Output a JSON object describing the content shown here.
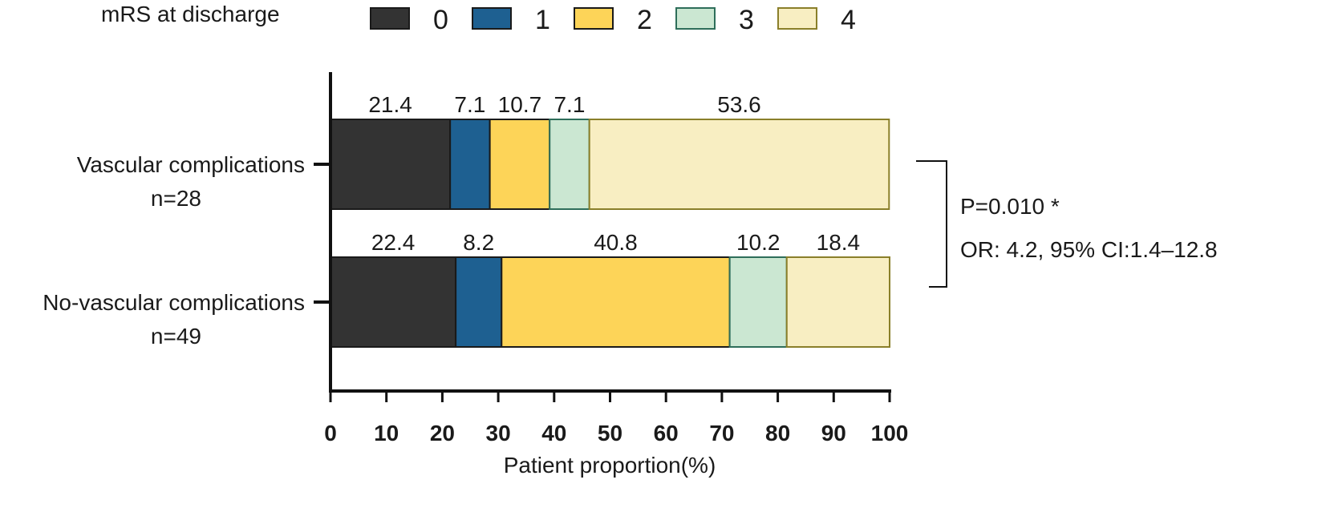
{
  "chart_data": {
    "type": "bar",
    "orientation": "horizontal",
    "stacked": true,
    "legend_title": "mRS at discharge",
    "legend_position": "top",
    "categories": [
      "Vascular complications",
      "No-vascular complications"
    ],
    "category_sublabels": [
      "n=28",
      "n=49"
    ],
    "series": [
      {
        "name": "0",
        "color": "#333333",
        "values": [
          21.4,
          22.4
        ]
      },
      {
        "name": "1",
        "color": "#1e6091",
        "values": [
          7.1,
          8.2
        ]
      },
      {
        "name": "2",
        "color": "#fdd458",
        "values": [
          10.7,
          40.8
        ]
      },
      {
        "name": "3",
        "color": "#cbe7d2",
        "values": [
          7.1,
          10.2
        ]
      },
      {
        "name": "4",
        "color": "#f8eec2",
        "values": [
          53.6,
          18.4
        ]
      }
    ],
    "series_borders": [
      "#1a1a1a",
      "#1a1a1a",
      "#1a1a1a",
      "#2e6e5a",
      "#8a7f2a"
    ],
    "data_labels": [
      [
        "21.4",
        "7.1",
        "10.7",
        "7.1",
        "53.6"
      ],
      [
        "22.4",
        "8.2",
        "40.8",
        "10.2",
        "18.4"
      ]
    ],
    "xlabel": "Patient proportion(%)",
    "ylabel": "",
    "xlim": [
      0,
      100
    ],
    "xticks": [
      "0",
      "10",
      "20",
      "30",
      "40",
      "50",
      "60",
      "70",
      "80",
      "90",
      "100"
    ],
    "grid": false,
    "annotation": {
      "lines": [
        "P=0.010 *",
        "OR: 4.2, 95% CI:1.4–12.8"
      ]
    }
  }
}
